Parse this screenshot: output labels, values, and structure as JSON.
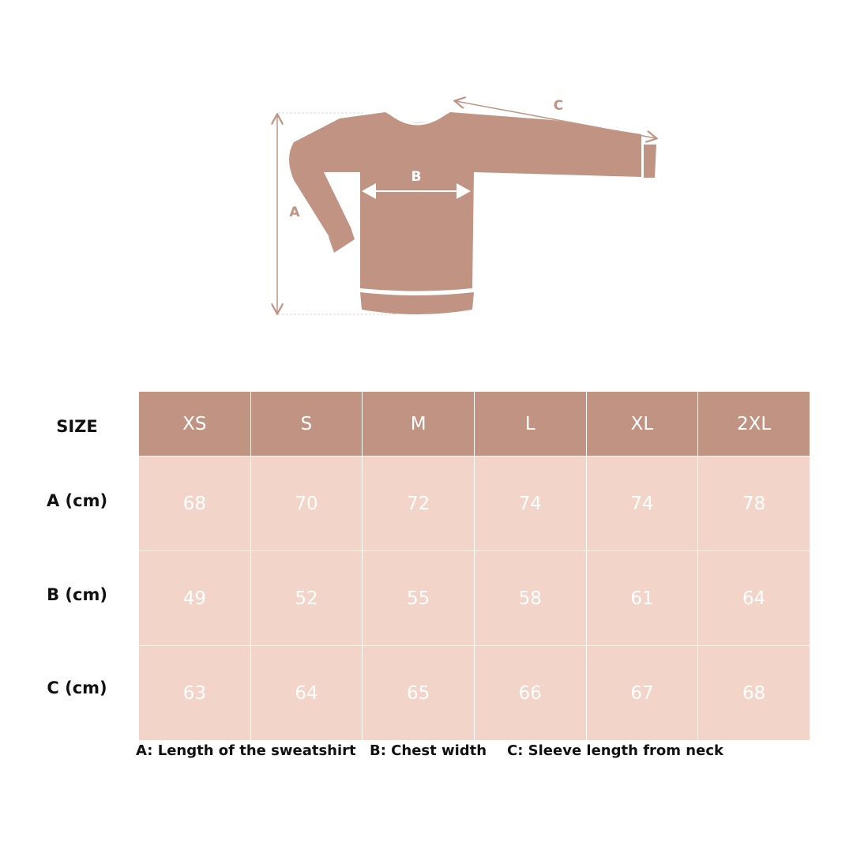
{
  "colors": {
    "garment": "#c09383",
    "header": "#c09383",
    "cell": "#f2d5c8"
  },
  "diagram": {
    "label_a": "A",
    "label_b": "B",
    "label_c": "C"
  },
  "table": {
    "corner": "SIZE",
    "sizes": [
      "XS",
      "S",
      "M",
      "L",
      "XL",
      "2XL"
    ],
    "rows": [
      {
        "label": "A (cm)",
        "values": [
          "68",
          "70",
          "72",
          "74",
          "74",
          "78"
        ]
      },
      {
        "label": "B (cm)",
        "values": [
          "49",
          "52",
          "55",
          "58",
          "61",
          "64"
        ]
      },
      {
        "label": "C (cm)",
        "values": [
          "63",
          "64",
          "65",
          "66",
          "67",
          "68"
        ]
      }
    ]
  },
  "legend": [
    "A: Length of the sweatshirt",
    "B: Chest width",
    "C: Sleeve length from neck"
  ]
}
